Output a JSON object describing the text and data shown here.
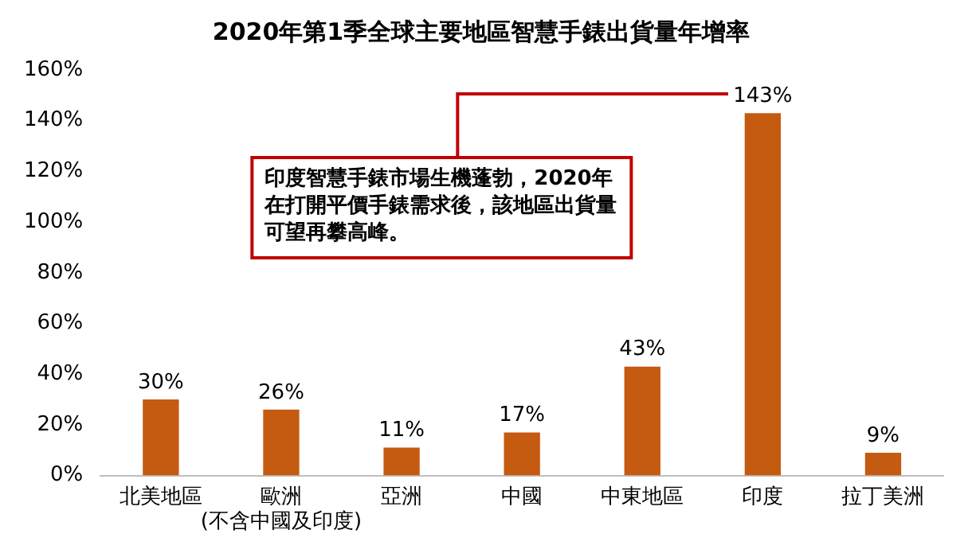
{
  "chart_data": {
    "type": "bar",
    "title": "2020年第1季全球主要地區智慧手錶出貨量年增率",
    "categories": [
      "北美地區",
      "歐洲\n(不含中國及印度)",
      "亞洲",
      "中國",
      "中東地區",
      "印度",
      "拉丁美洲"
    ],
    "values": [
      30,
      26,
      11,
      17,
      43,
      143,
      9
    ],
    "color": "#c55a11",
    "value_labels": [
      "30%",
      "26%",
      "11%",
      "17%",
      "43%",
      "143%",
      "9%"
    ],
    "ylim": [
      0,
      160
    ],
    "yticks": [
      {
        "value": 0,
        "label": "0%"
      },
      {
        "value": 20,
        "label": "20%"
      },
      {
        "value": 40,
        "label": "40%"
      },
      {
        "value": 60,
        "label": "60%"
      },
      {
        "value": 80,
        "label": "80%"
      },
      {
        "value": 100,
        "label": "100%"
      },
      {
        "value": 120,
        "label": "120%"
      },
      {
        "value": 140,
        "label": "140%"
      },
      {
        "value": 160,
        "label": "160%"
      }
    ],
    "annotations": [
      "印度智慧手錶市場生機蓬勃，2020年在打開平價手錶需求後，該地區出貨量可望再攀高峰。"
    ]
  }
}
